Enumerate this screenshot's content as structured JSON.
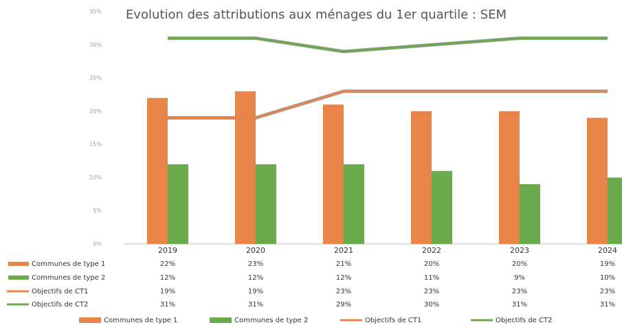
{
  "chart_data": {
    "type": "bar-line",
    "title": "Evolution des attributions aux ménages du 1er quartile : SEM",
    "categories": [
      "2019",
      "2020",
      "2021",
      "2022",
      "2023",
      "2024"
    ],
    "ylim": [
      0,
      35
    ],
    "yticks": [
      {
        "value": 0,
        "label": "0%"
      },
      {
        "value": 5,
        "label": "5%"
      },
      {
        "value": 10,
        "label": "10%"
      },
      {
        "value": 15,
        "label": "15%"
      },
      {
        "value": 20,
        "label": "20%"
      },
      {
        "value": 25,
        "label": "25%"
      },
      {
        "value": 30,
        "label": "30%"
      },
      {
        "value": 35,
        "label": "35%"
      }
    ],
    "series": [
      {
        "name": "Communes de type 1",
        "kind": "bar",
        "color": "#e8834a",
        "values": [
          22,
          23,
          21,
          20,
          20,
          19
        ],
        "value_labels": [
          "22%",
          "23%",
          "21%",
          "20%",
          "20%",
          "19%"
        ]
      },
      {
        "name": "Communes de type 2",
        "kind": "bar",
        "color": "#6aaa4a",
        "values": [
          12,
          12,
          12,
          11,
          9,
          10
        ],
        "value_labels": [
          "12%",
          "12%",
          "12%",
          "11%",
          "9%",
          "10%"
        ]
      },
      {
        "name": "Objectifs de CT1",
        "kind": "line",
        "color": "#e8834a",
        "values": [
          19,
          19,
          23,
          23,
          23,
          23
        ],
        "value_labels": [
          "19%",
          "19%",
          "23%",
          "23%",
          "23%",
          "23%"
        ]
      },
      {
        "name": "Objectifs de CT2",
        "kind": "line",
        "color": "#6aaa4a",
        "values": [
          31,
          31,
          29,
          30,
          31,
          31
        ],
        "value_labels": [
          "31%",
          "31%",
          "29%",
          "30%",
          "31%",
          "31%"
        ]
      }
    ]
  }
}
